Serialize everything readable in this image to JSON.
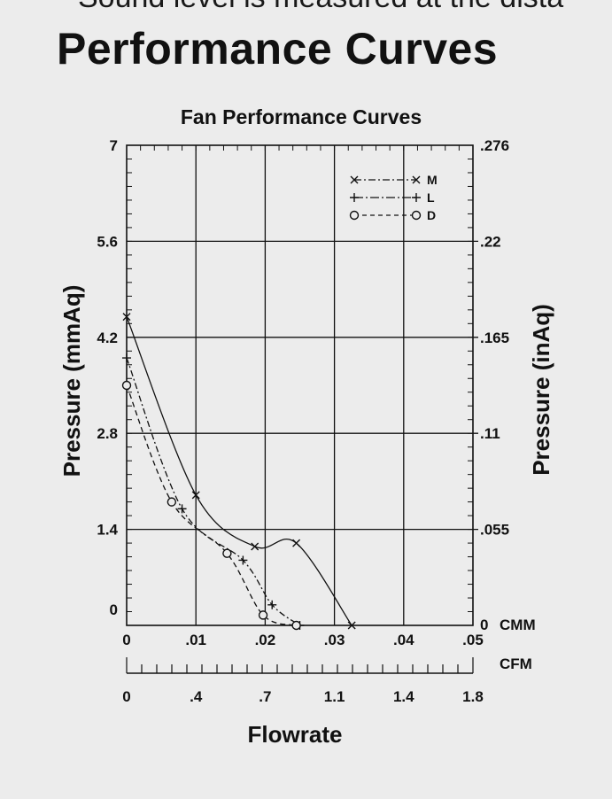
{
  "header": {
    "cut_line": "Sound level is measured at the dista",
    "title": "Performance Curves"
  },
  "chart_data": {
    "type": "line",
    "title": "Fan Performance Curves",
    "xlabel": "Flowrate",
    "ylabel": "Pressure  (mmAq)",
    "ylabel_right": "Pressure  (inAq)",
    "x_unit_primary": "CMM",
    "x_unit_secondary": "CFM",
    "xlim": [
      0,
      0.05
    ],
    "ylim": [
      0,
      7
    ],
    "grid": true,
    "legend_position": "top-right",
    "y_ticks": [
      "7",
      "5.6",
      "4.2",
      "2.8",
      "1.4",
      "0"
    ],
    "y_ticks_right": [
      ".276",
      ".22",
      ".165",
      ".11",
      ".055",
      "0"
    ],
    "x_ticks": [
      "0",
      ".01",
      ".02",
      ".03",
      ".04",
      ".05"
    ],
    "x_ticks_secondary": [
      "0",
      ".4",
      ".7",
      "1.1",
      "1.4",
      "1.8"
    ],
    "series": [
      {
        "name": "M",
        "marker": "x",
        "x": [
          0,
          0.01,
          0.0185,
          0.0245,
          0.0325
        ],
        "y": [
          4.5,
          1.9,
          1.15,
          1.2,
          0.0
        ]
      },
      {
        "name": "L",
        "marker": "+",
        "x": [
          0,
          0.008,
          0.0168,
          0.021,
          0.025
        ],
        "y": [
          3.9,
          1.7,
          0.95,
          0.3,
          0.0
        ]
      },
      {
        "name": "D",
        "marker": "o",
        "x": [
          0,
          0.0065,
          0.0145,
          0.0197,
          0.0245
        ],
        "y": [
          3.5,
          1.8,
          1.05,
          0.15,
          0.0
        ]
      }
    ]
  }
}
